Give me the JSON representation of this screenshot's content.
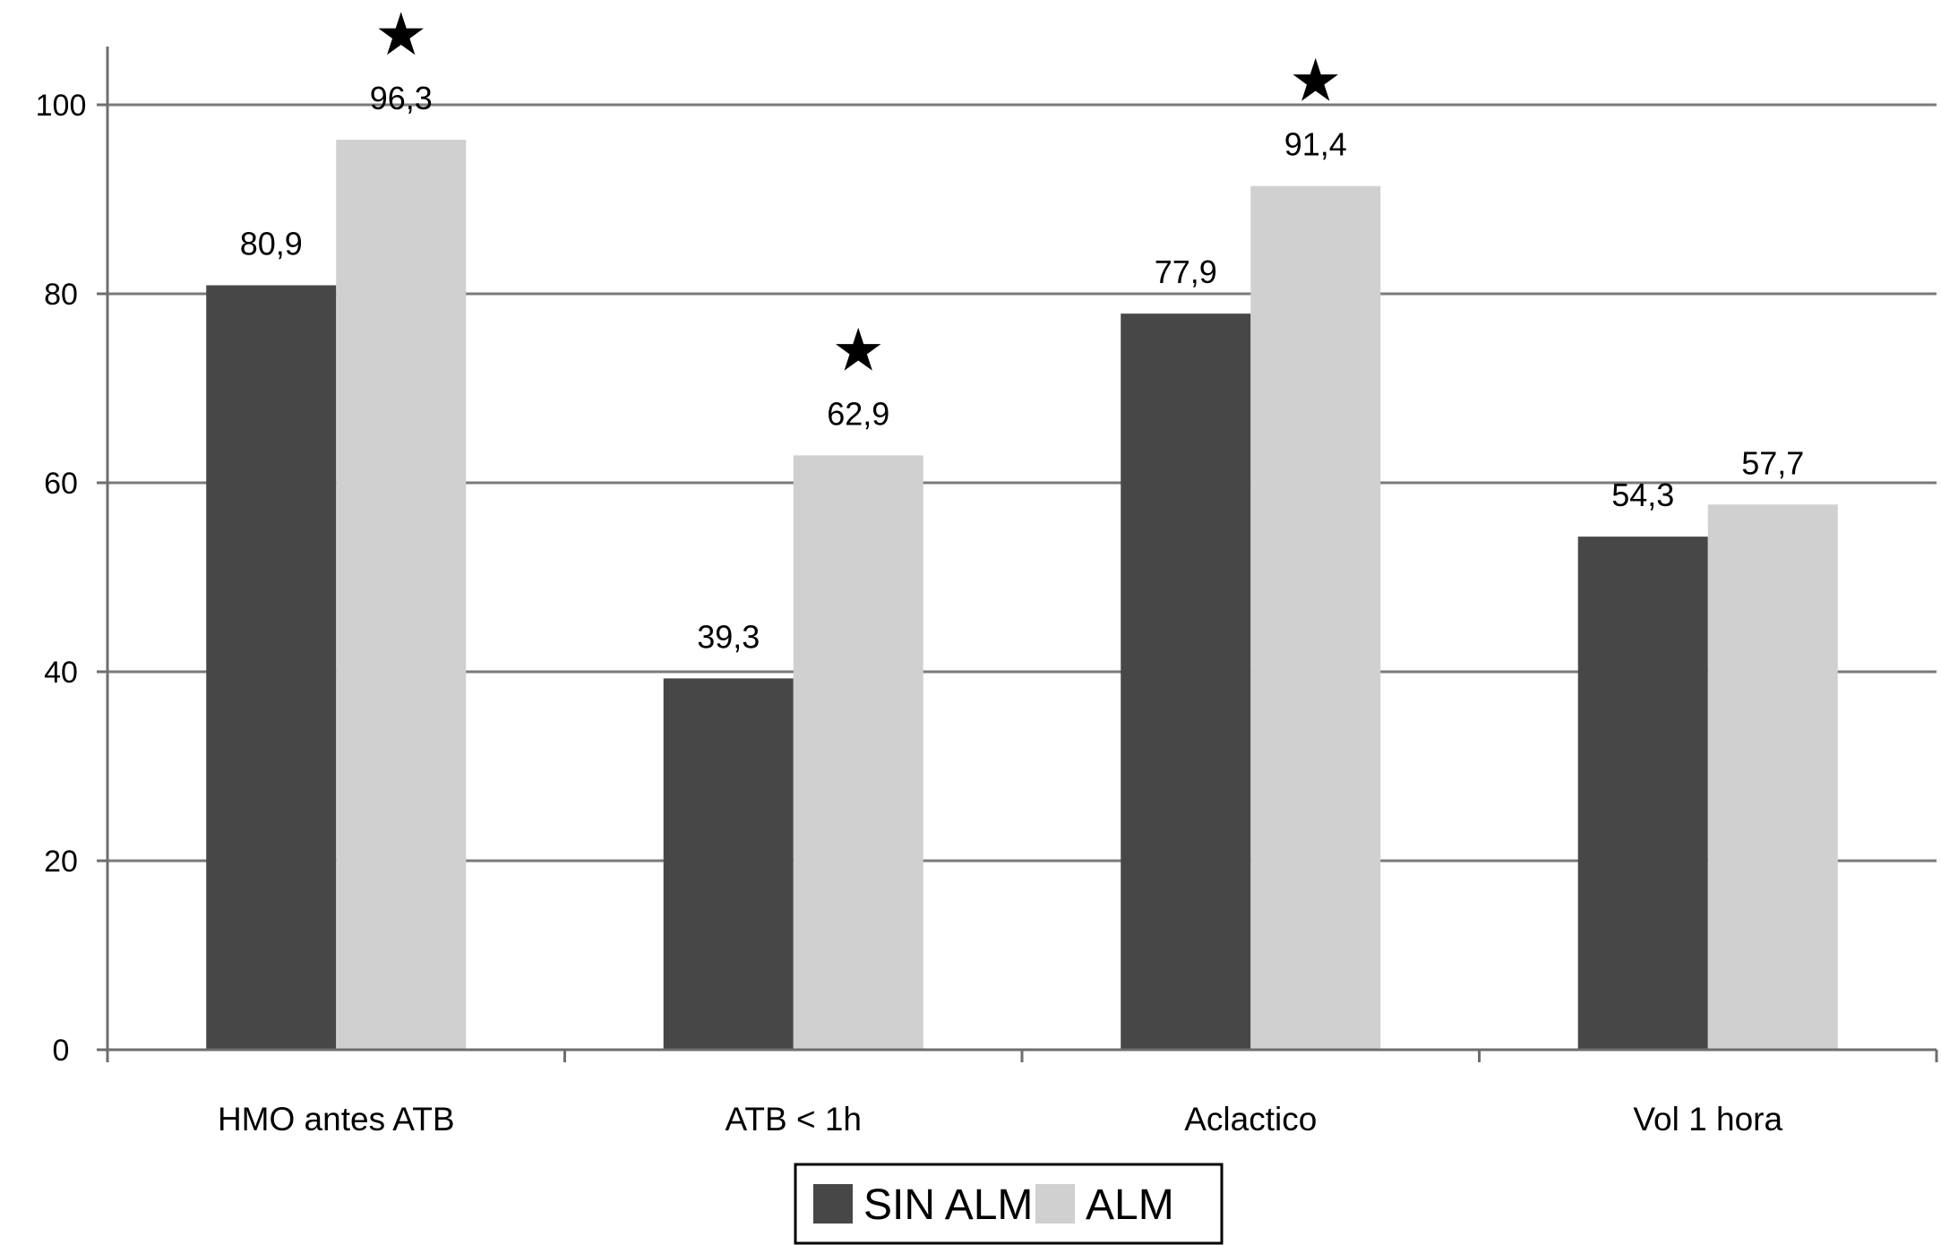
{
  "chart_data": {
    "type": "bar",
    "categories": [
      "HMO antes ATB",
      "ATB < 1h",
      "Aclactico",
      "Vol 1 hora"
    ],
    "series": [
      {
        "name": "SIN ALM",
        "values": [
          80.9,
          39.3,
          77.9,
          54.3
        ],
        "labels": [
          "80,9",
          "39,3",
          "77,9",
          "54,3"
        ],
        "color": "#474747"
      },
      {
        "name": "ALM",
        "values": [
          96.3,
          62.9,
          91.4,
          57.7
        ],
        "labels": [
          "96,3",
          "62,9",
          "91,4",
          "57,7"
        ],
        "color": "#d0d0d0"
      }
    ],
    "significance_markers": [
      {
        "category": "HMO antes ATB",
        "series": "ALM",
        "symbol": "★"
      },
      {
        "category": "ATB < 1h",
        "series": "ALM",
        "symbol": "★"
      },
      {
        "category": "Aclactico",
        "series": "ALM",
        "symbol": "★"
      }
    ],
    "ylim": [
      0,
      100
    ],
    "yticks": [
      0,
      20,
      40,
      60,
      80,
      100
    ],
    "grid": true,
    "legend_position": "bottom-center",
    "title": "",
    "xlabel": "",
    "ylabel": ""
  },
  "colors": {
    "gridline": "#7a7a7a",
    "axis": "#6e6e6e"
  }
}
